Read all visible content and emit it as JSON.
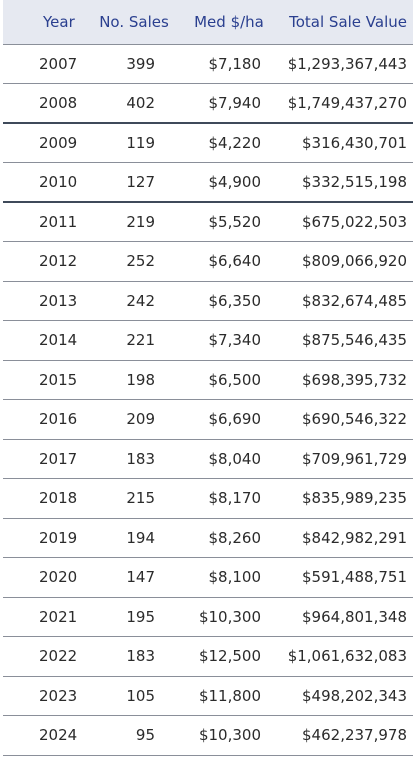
{
  "table": {
    "headers": [
      "Year",
      "No. Sales",
      "Med $/ha",
      "Total Sale Value"
    ],
    "rows": [
      [
        "2007",
        "399",
        "$7,180",
        "$1,293,367,443"
      ],
      [
        "2008",
        "402",
        "$7,940",
        "$1,749,437,270"
      ],
      [
        "2009",
        "119",
        "$4,220",
        "$316,430,701"
      ],
      [
        "2010",
        "127",
        "$4,900",
        "$332,515,198"
      ],
      [
        "2011",
        "219",
        "$5,520",
        "$675,022,503"
      ],
      [
        "2012",
        "252",
        "$6,640",
        "$809,066,920"
      ],
      [
        "2013",
        "242",
        "$6,350",
        "$832,674,485"
      ],
      [
        "2014",
        "221",
        "$7,340",
        "$875,546,435"
      ],
      [
        "2015",
        "198",
        "$6,500",
        "$698,395,732"
      ],
      [
        "2016",
        "209",
        "$6,690",
        "$690,546,322"
      ],
      [
        "2017",
        "183",
        "$8,040",
        "$709,961,729"
      ],
      [
        "2018",
        "215",
        "$8,170",
        "$835,989,235"
      ],
      [
        "2019",
        "194",
        "$8,260",
        "$842,982,291"
      ],
      [
        "2020",
        "147",
        "$8,100",
        "$591,488,751"
      ],
      [
        "2021",
        "195",
        "$10,300",
        "$964,801,348"
      ],
      [
        "2022",
        "183",
        "$12,500",
        "$1,061,632,083"
      ],
      [
        "2023",
        "105",
        "$11,800",
        "$498,202,343"
      ],
      [
        "2024",
        "95",
        "$10,300",
        "$462,237,978"
      ]
    ]
  },
  "colors": {
    "header_bg": "#e6e9f1",
    "header_text": "#2a3f8f",
    "body_text": "#2b2b2b",
    "rule": "#8a8f99",
    "thick_rule": "#3f4a5a"
  }
}
